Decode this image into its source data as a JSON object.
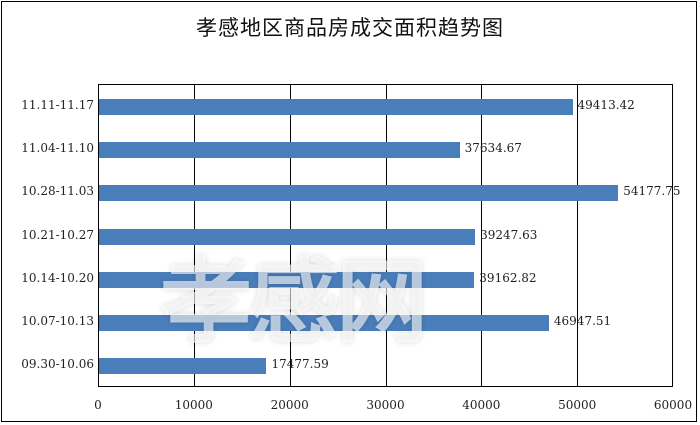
{
  "title": "孝感地区商品房成交面积趋势图",
  "watermark": "孝感网",
  "colors": {
    "bar": "#4a7ebb",
    "grid": "#000000"
  },
  "axis": {
    "ticks": [
      "0",
      "10000",
      "20000",
      "30000",
      "40000",
      "50000",
      "60000"
    ]
  },
  "rows": [
    {
      "label": "11.11-11.17",
      "value_text": "49413.42"
    },
    {
      "label": "11.04-11.10",
      "value_text": "37634.67"
    },
    {
      "label": "10.28-11.03",
      "value_text": "54177.75"
    },
    {
      "label": "10.21-10.27",
      "value_text": "39247.63"
    },
    {
      "label": "10.14-10.20",
      "value_text": "39162.82"
    },
    {
      "label": "10.07-10.13",
      "value_text": "46947.51"
    },
    {
      "label": "09.30-10.06",
      "value_text": "17477.59"
    }
  ],
  "chart_data": {
    "type": "bar",
    "orientation": "horizontal",
    "title": "孝感地区商品房成交面积趋势图",
    "categories": [
      "11.11-11.17",
      "11.04-11.10",
      "10.28-11.03",
      "10.21-10.27",
      "10.14-10.20",
      "10.07-10.13",
      "09.30-10.06"
    ],
    "values": [
      49413.42,
      37634.67,
      54177.75,
      39247.63,
      39162.82,
      46947.51,
      17477.59
    ],
    "xlabel": "",
    "ylabel": "",
    "xlim": [
      0,
      60000
    ],
    "xticks": [
      0,
      10000,
      20000,
      30000,
      40000,
      50000,
      60000
    ],
    "grid": true,
    "legend": null,
    "data_labels": true
  }
}
